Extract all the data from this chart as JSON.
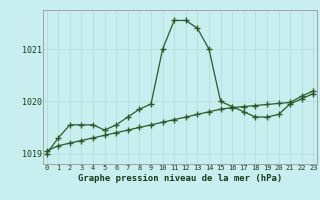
{
  "title": "Graphe pression niveau de la mer (hPa)",
  "bg_color": "#c8eef0",
  "grid_color": "#b8dfe0",
  "line_color": "#2d5a27",
  "hours": [
    0,
    1,
    2,
    3,
    4,
    5,
    6,
    7,
    8,
    9,
    10,
    11,
    12,
    13,
    14,
    15,
    16,
    17,
    18,
    19,
    20,
    21,
    22,
    23
  ],
  "pressure_series1": [
    1019.0,
    1019.3,
    1019.55,
    1019.55,
    1019.55,
    1019.45,
    1019.55,
    1019.7,
    1019.85,
    1019.95,
    1021.0,
    1021.55,
    1021.55,
    1021.4,
    1021.0,
    1020.0,
    1019.9,
    1019.8,
    1019.7,
    1019.7,
    1019.75,
    1019.95,
    1020.05,
    1020.15
  ],
  "pressure_series2": [
    1019.05,
    1019.15,
    1019.2,
    1019.25,
    1019.3,
    1019.35,
    1019.4,
    1019.45,
    1019.5,
    1019.55,
    1019.6,
    1019.65,
    1019.7,
    1019.75,
    1019.8,
    1019.85,
    1019.88,
    1019.9,
    1019.92,
    1019.94,
    1019.96,
    1019.98,
    1020.1,
    1020.2
  ],
  "ylim": [
    1018.8,
    1021.75
  ],
  "yticks": [
    1019,
    1020,
    1021
  ],
  "xlim": [
    -0.3,
    23.3
  ]
}
